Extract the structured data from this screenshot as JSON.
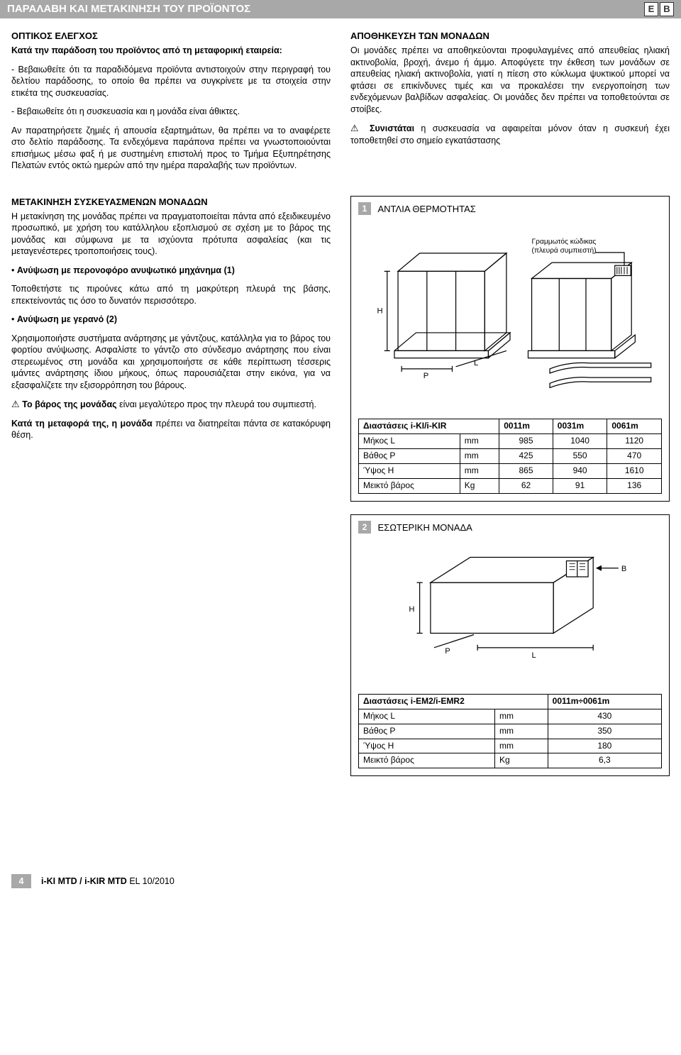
{
  "header": {
    "title": "ΠΑΡΑΛΑΒΗ ΚΑΙ ΜΕΤΑΚΙΝΗΣΗ ΤΟΥ ΠΡΟΪΟΝΤΟΣ",
    "icon_e": "E",
    "icon_b": "B"
  },
  "left": {
    "h1": "ΟΠΤΙΚΟΣ ΕΛΕΓΧΟΣ",
    "p1": "Κατά την παράδοση του προϊόντος από τη μεταφορική εταιρεία:",
    "p2": "- Βεβαιωθείτε ότι τα παραδιδόμενα προϊόντα αντιστοιχούν στην περιγραφή του δελτίου παράδοσης, το οποίο θα πρέπει να συγκρίνετε με τα στοιχεία στην ετικέτα της συσκευασίας.",
    "p3": "- Βεβαιωθείτε ότι η συσκευασία και η μονάδα είναι άθικτες.",
    "p4": "Αν παρατηρήσετε ζημιές ή απουσία εξαρτημάτων, θα πρέπει να το αναφέρετε στο δελτίο παράδοσης. Τα ενδεχόμενα παράπονα πρέπει να γνωστοποιούνται επισήμως μέσω φαξ ή με συστημένη επιστολή προς το Τμήμα Εξυπηρέτησης Πελατών εντός οκτώ ημερών από την ημέρα παραλαβής των προϊόντων.",
    "h2": "ΜΕΤΑΚΙΝΗΣΗ ΣΥΣΚΕΥΑΣΜΕΝΩΝ ΜΟΝΑΔΩΝ",
    "p5": "Η μετακίνηση της μονάδας πρέπει να πραγματοποιείται πάντα από εξειδικευμένο προσωπικό, με χρήση του κατάλληλου εξοπλισμού σε σχέση με το βάρος της μονάδας και σύμφωνα με τα ισχύοντα πρότυπα ασφαλείας (και τις μεταγενέστερες τροποποιήσεις τους).",
    "b1": "Ανύψωση με περονοφόρο ανυψωτικό μηχάνημα (1)",
    "p6": "Τοποθετήστε τις πιρούνες κάτω από τη μακρύτερη πλευρά της βάσης, επεκτείνοντάς τις όσο το δυνατόν περισσότερο.",
    "b2": "Ανύψωση με γερανό (2)",
    "p7": "Χρησιμοποιήστε συστήματα ανάρτησης με γάντζους, κατάλληλα για το βάρος του φορτίου ανύψωσης. Ασφαλίστε το γάντζο στο σύνδεσμο ανάρτησης που είναι στερεωμένος στη μονάδα και χρησιμοποιήστε σε κάθε περίπτωση τέσσερις ιμάντες ανάρτησης ίδιου μήκους, όπως παρουσιάζεται στην εικόνα, για να εξασφαλίζετε την εξισορρόπηση του βάρους.",
    "p8a": "Το βάρος της μονάδας",
    "p8b": " είναι μεγαλύτερο προς την πλευρά του συμπιεστή.",
    "p9a": "Κατά τη μεταφορά της, η μονάδα",
    "p9b": " πρέπει να διατηρείται πάντα σε κατακόρυφη θέση."
  },
  "right": {
    "h1": "ΑΠΟΘΗΚΕΥΣΗ ΤΩΝ ΜΟΝΑΔΩΝ",
    "p1": "Οι μονάδες πρέπει να αποθηκεύονται προφυλαγμένες από απευθείας ηλιακή ακτινοβολία, βροχή, άνεμο ή άμμο. Αποφύγετε την έκθεση των μονάδων σε απευθείας ηλιακή ακτινοβολία, γιατί η πίεση στο κύκλωμα ψυκτικού μπορεί να φτάσει σε επικίνδυνες τιμές και να προκαλέσει την ενεργοποίηση των ενδεχόμενων βαλβίδων ασφαλείας. Οι μονάδες δεν πρέπει να τοποθετούνται σε στοίβες.",
    "p2a": "Συνιστάται",
    "p2b": " η συσκευασία να αφαιρείται μόνον όταν η συσκευή έχει τοποθετηθεί στο σημείο εγκατάστασης"
  },
  "fig1": {
    "num": "1",
    "title": "ΑΝΤΛΙΑ ΘΕΡΜΟΤΗΤΑΣ",
    "barcode_label": "Γραμμωτός κώδικας\n(πλευρά συμπιεστή)",
    "H": "H",
    "P": "P",
    "L": "L",
    "table": {
      "header": [
        "Διαστάσεις i-KI/i-KIR",
        "",
        "0011m",
        "0031m",
        "0061m"
      ],
      "rows": [
        [
          "Μήκος L",
          "mm",
          "985",
          "1040",
          "1120"
        ],
        [
          "Βάθος P",
          "mm",
          "425",
          "550",
          "470"
        ],
        [
          "Ύψος H",
          "mm",
          "865",
          "940",
          "1610"
        ],
        [
          "Μεικτό βάρος",
          "Kg",
          "62",
          "91",
          "136"
        ]
      ]
    }
  },
  "fig2": {
    "num": "2",
    "title": "ΕΣΩΤΕΡΙΚΗ ΜΟΝΑΔΑ",
    "H": "H",
    "P": "P",
    "L": "L",
    "B": "B",
    "table": {
      "header": [
        "Διαστάσεις i-EM2/i-EMR2",
        "",
        "0011m÷0061m"
      ],
      "rows": [
        [
          "Μήκος L",
          "mm",
          "430"
        ],
        [
          "Βάθος P",
          "mm",
          "350"
        ],
        [
          "Ύψος H",
          "mm",
          "180"
        ],
        [
          "Μεικτό βάρος",
          "Kg",
          "6,3"
        ]
      ]
    }
  },
  "footer": {
    "page": "4",
    "left": "i-KI MTD / i-KIR MTD",
    "right": "EL 10/2010"
  }
}
